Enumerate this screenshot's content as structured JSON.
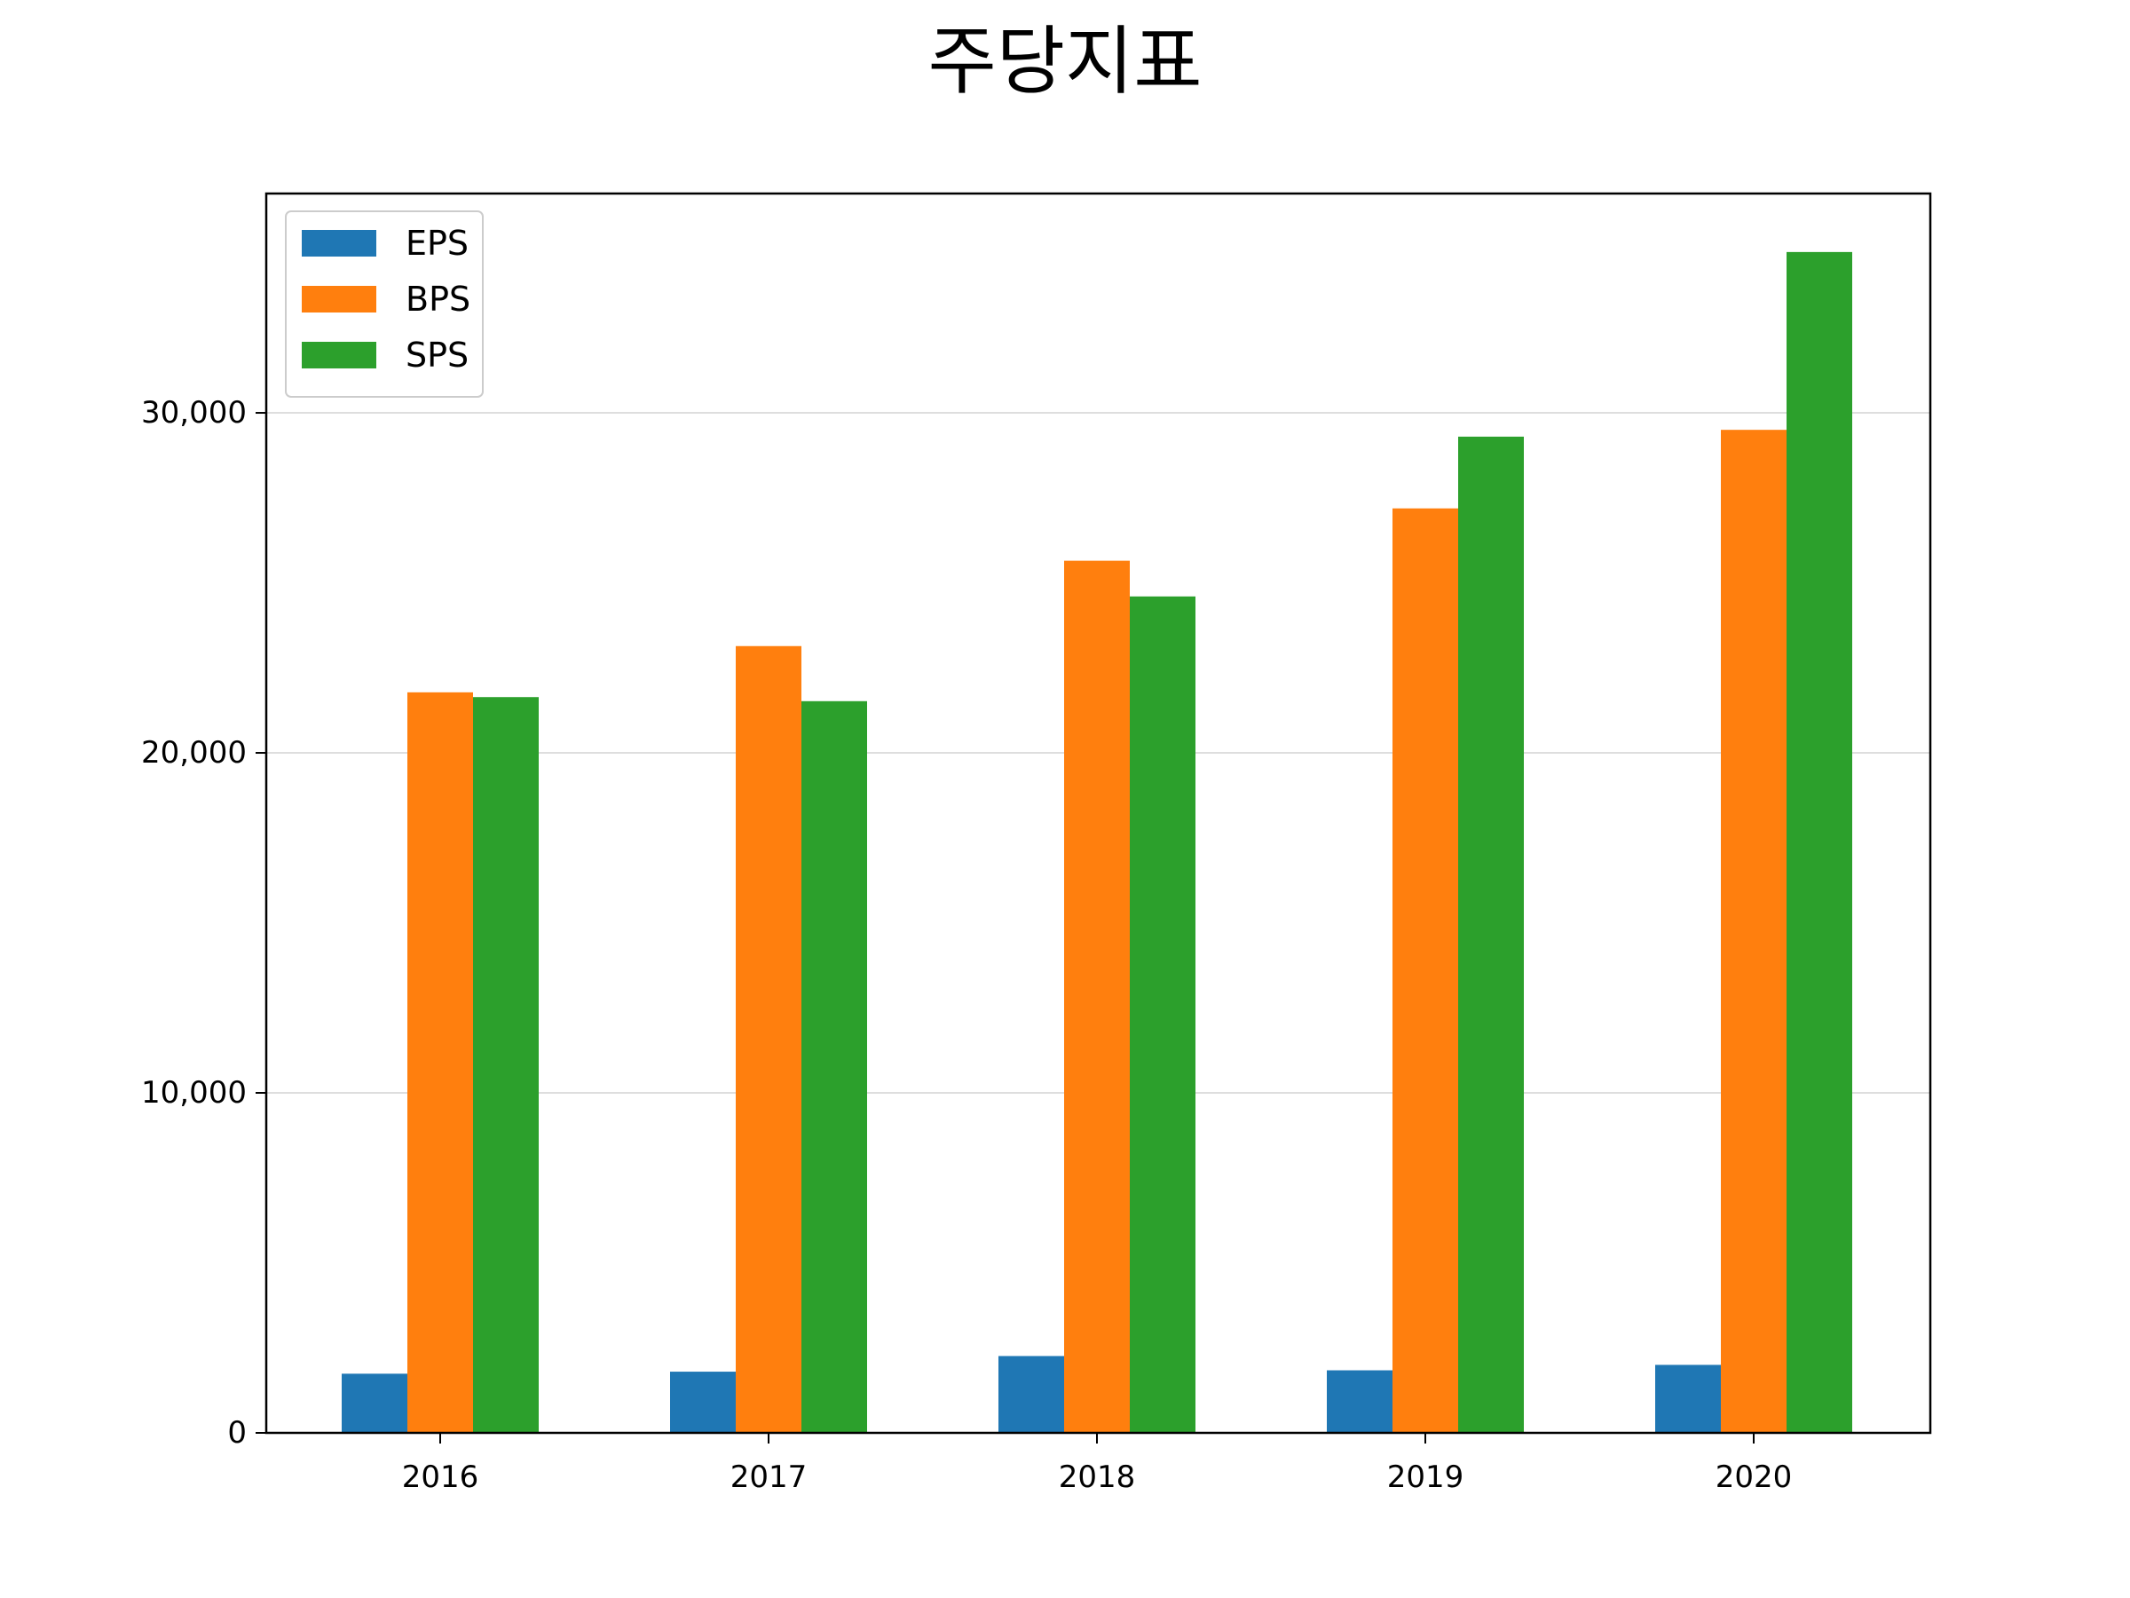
{
  "chart_data": {
    "type": "bar",
    "title": "주당지표",
    "xlabel": "",
    "ylabel": "",
    "categories": [
      "2016",
      "2017",
      "2018",
      "2019",
      "2020"
    ],
    "series": [
      {
        "name": "EPS",
        "color": "#1f77b4",
        "values": [
          1740,
          1800,
          2260,
          1840,
          2000
        ]
      },
      {
        "name": "BPS",
        "color": "#ff7f0e",
        "values": [
          21780,
          23140,
          25650,
          27190,
          29500
        ]
      },
      {
        "name": "SPS",
        "color": "#2ca02c",
        "values": [
          21640,
          21520,
          24600,
          29300,
          34730
        ]
      }
    ],
    "ylim": [
      0,
      36450
    ],
    "yticks": [
      0,
      10000,
      20000,
      30000
    ],
    "ytick_labels": [
      "0",
      "10,000",
      "20,000",
      "30,000"
    ],
    "grid": "horizontal",
    "legend_position": "top-left"
  }
}
